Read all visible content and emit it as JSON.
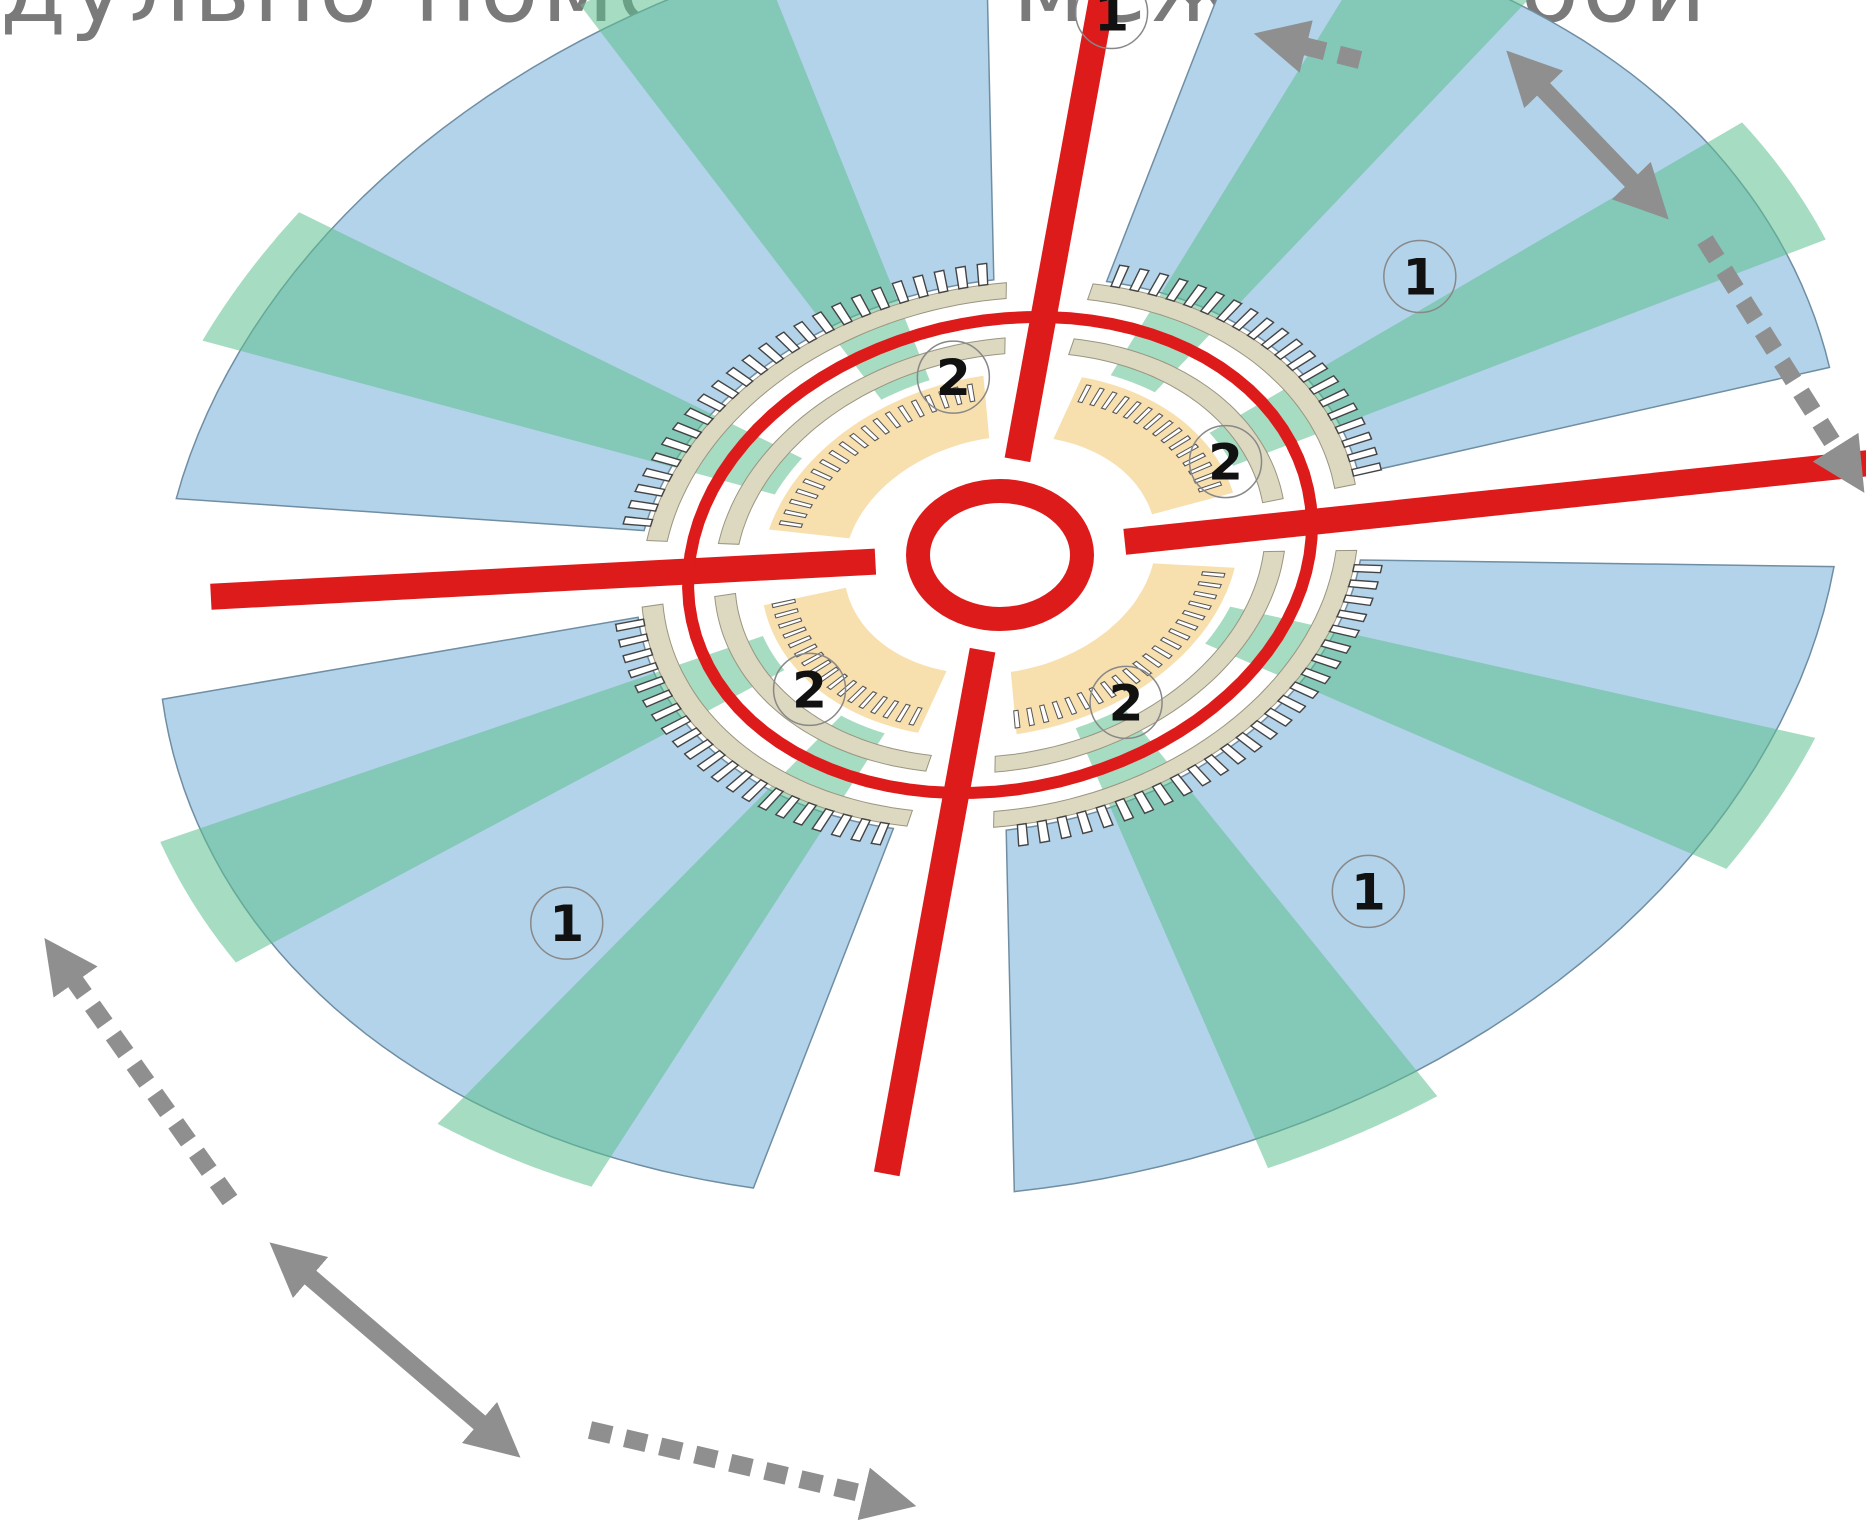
{
  "title_fragment": "дульно помещены между собой",
  "legend_markers": [
    {
      "id": "m1",
      "label": "1",
      "ring": "outer"
    },
    {
      "id": "m2",
      "label": "1",
      "ring": "outer"
    },
    {
      "id": "m3",
      "label": "1",
      "ring": "outer"
    },
    {
      "id": "m4",
      "label": "1",
      "ring": "outer"
    },
    {
      "id": "m5",
      "label": "2",
      "ring": "inner"
    },
    {
      "id": "m6",
      "label": "2",
      "ring": "inner"
    },
    {
      "id": "m7",
      "label": "2",
      "ring": "inner"
    },
    {
      "id": "m8",
      "label": "2",
      "ring": "inner"
    }
  ],
  "colors": {
    "road": "#dd1b1b",
    "outer_sector": "#b3d3ea",
    "green_overlay": "#5cbf8e",
    "inner_sector": "#f8dfae",
    "ring_band": "#ddd8c0",
    "arrow": "#8f8f8f"
  }
}
